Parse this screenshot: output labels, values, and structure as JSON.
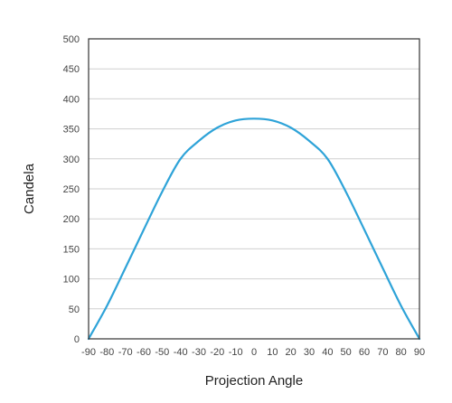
{
  "chart_data": {
    "type": "line",
    "title": "",
    "xlabel": "Projection Angle",
    "ylabel": "Candela",
    "xlim": [
      -90,
      90
    ],
    "ylim": [
      0,
      500
    ],
    "x_ticks": [
      -90,
      -80,
      -70,
      -60,
      -50,
      -40,
      -30,
      -20,
      -10,
      0,
      10,
      20,
      30,
      40,
      50,
      60,
      70,
      80,
      90
    ],
    "y_ticks": [
      0,
      50,
      100,
      150,
      200,
      250,
      300,
      350,
      400,
      450,
      500
    ],
    "grid": "horizontal",
    "legend": "none",
    "series": [
      {
        "color": "#2ea3d8",
        "x": [
          -90,
          -80,
          -70,
          -60,
          -50,
          -40,
          -30,
          -20,
          -10,
          0,
          10,
          20,
          30,
          40,
          50,
          60,
          70,
          80,
          90
        ],
        "y": [
          0,
          55,
          118,
          182,
          245,
          300,
          330,
          352,
          364,
          367,
          364,
          352,
          330,
          300,
          245,
          182,
          118,
          55,
          0
        ]
      }
    ]
  }
}
